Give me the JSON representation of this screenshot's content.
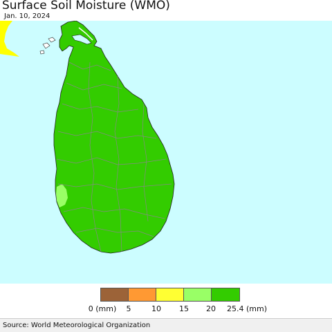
{
  "header": {
    "title": "Surface Soil Moisture (WMO)",
    "date": "Jan. 10, 2024"
  },
  "colors": {
    "ocean": "#ccfdff",
    "india_land": "#ffff00",
    "land_main": "#33cc00",
    "land_wet_patch": "#99ff66",
    "boundary": "#888888"
  },
  "legend": {
    "swatches": [
      {
        "color": "#9c6338",
        "range": "0-5"
      },
      {
        "color": "#ff9933",
        "range": "5-10"
      },
      {
        "color": "#ffff33",
        "range": "10-15"
      },
      {
        "color": "#99ff66",
        "range": "15-20"
      },
      {
        "color": "#33cc00",
        "range": "20-25.4"
      }
    ],
    "labels": [
      "0 (mm)",
      "5",
      "10",
      "15",
      "20",
      "25.4 (mm)"
    ]
  },
  "footer": {
    "source": "Source: World Meteorological Organization"
  }
}
